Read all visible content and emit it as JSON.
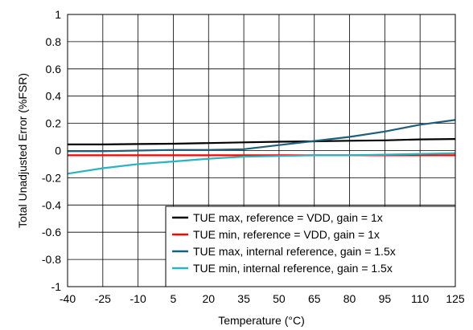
{
  "chart_data": {
    "type": "line",
    "xlabel": "Temperature (°C)",
    "ylabel": "Total Unadjusted Error (%FSR)",
    "xlim": [
      -40,
      125
    ],
    "ylim": [
      -1,
      1
    ],
    "xticks": [
      "-40",
      "-25",
      "-10",
      "5",
      "20",
      "35",
      "50",
      "65",
      "80",
      "95",
      "110",
      "125"
    ],
    "yticks": [
      "-1",
      "-0.8",
      "-0.6",
      "-0.4",
      "-0.2",
      "0",
      "0.2",
      "0.4",
      "0.6",
      "0.8",
      "1"
    ],
    "grid": true,
    "legend_position": "bottom-right",
    "series": [
      {
        "name": "TUE max, reference = VDD, gain = 1x",
        "color": "#000000",
        "x": [
          -40,
          -25,
          -10,
          5,
          20,
          35,
          50,
          65,
          80,
          95,
          110,
          125
        ],
        "y": [
          0.045,
          0.045,
          0.048,
          0.05,
          0.055,
          0.06,
          0.065,
          0.068,
          0.072,
          0.075,
          0.082,
          0.085
        ]
      },
      {
        "name": "TUE min, reference = VDD, gain = 1x",
        "color": "#ff0000",
        "x": [
          -40,
          -25,
          -10,
          5,
          20,
          35,
          50,
          65,
          80,
          95,
          110,
          125
        ],
        "y": [
          -0.035,
          -0.035,
          -0.035,
          -0.035,
          -0.035,
          -0.035,
          -0.035,
          -0.035,
          -0.035,
          -0.035,
          -0.035,
          -0.035
        ]
      },
      {
        "name": "TUE max, internal reference, gain = 1.5x",
        "color": "#1f5f7a",
        "x": [
          -40,
          -25,
          -10,
          5,
          20,
          35,
          50,
          65,
          80,
          95,
          110,
          125
        ],
        "y": [
          -0.005,
          -0.005,
          0.0,
          0.005,
          0.005,
          0.01,
          0.04,
          0.07,
          0.1,
          0.14,
          0.19,
          0.225
        ]
      },
      {
        "name": "TUE min, internal reference, gain = 1.5x",
        "color": "#2ab4c0",
        "x": [
          -40,
          -25,
          -10,
          5,
          20,
          35,
          50,
          65,
          80,
          95,
          110,
          125
        ],
        "y": [
          -0.17,
          -0.13,
          -0.1,
          -0.08,
          -0.06,
          -0.045,
          -0.04,
          -0.035,
          -0.035,
          -0.03,
          -0.025,
          -0.02
        ]
      }
    ]
  }
}
